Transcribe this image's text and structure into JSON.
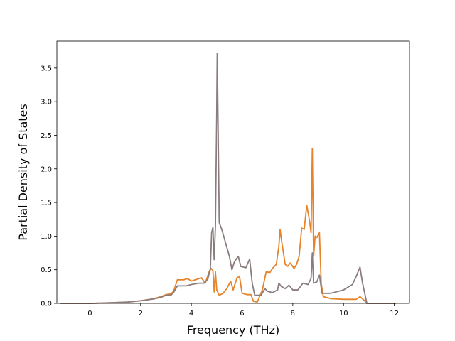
{
  "chart_data": {
    "type": "line",
    "title": "",
    "xlabel": "Frequency (THz)",
    "ylabel": "Partial Density of States",
    "xlim": [
      -1.3,
      12.6
    ],
    "ylim": [
      0.0,
      3.9
    ],
    "xticks": [
      0,
      2,
      4,
      6,
      8,
      10,
      12
    ],
    "xtick_labels": [
      "0",
      "2",
      "4",
      "6",
      "8",
      "10",
      "12"
    ],
    "yticks": [
      0.0,
      0.5,
      1.0,
      1.5,
      2.0,
      2.5,
      3.0,
      3.5
    ],
    "ytick_labels": [
      "0.0",
      "0.5",
      "1.0",
      "1.5",
      "2.0",
      "2.5",
      "3.0",
      "3.5"
    ],
    "grid": false,
    "series": [
      {
        "color": "#e6842b",
        "points": [
          [
            -1.15,
            0.0
          ],
          [
            0.0,
            0.0
          ],
          [
            0.5,
            0.005
          ],
          [
            1.0,
            0.012
          ],
          [
            1.5,
            0.02
          ],
          [
            2.0,
            0.038
          ],
          [
            2.5,
            0.068
          ],
          [
            2.8,
            0.1
          ],
          [
            3.0,
            0.13
          ],
          [
            3.2,
            0.14
          ],
          [
            3.3,
            0.18
          ],
          [
            3.45,
            0.35
          ],
          [
            3.7,
            0.35
          ],
          [
            3.85,
            0.37
          ],
          [
            4.0,
            0.33
          ],
          [
            4.15,
            0.35
          ],
          [
            4.4,
            0.38
          ],
          [
            4.55,
            0.3
          ],
          [
            4.7,
            0.47
          ],
          [
            4.78,
            0.52
          ],
          [
            4.85,
            0.49
          ],
          [
            4.9,
            0.17
          ],
          [
            4.95,
            0.47
          ],
          [
            5.0,
            0.2
          ],
          [
            5.1,
            0.12
          ],
          [
            5.25,
            0.15
          ],
          [
            5.4,
            0.22
          ],
          [
            5.55,
            0.33
          ],
          [
            5.65,
            0.2
          ],
          [
            5.8,
            0.38
          ],
          [
            5.9,
            0.4
          ],
          [
            6.0,
            0.15
          ],
          [
            6.2,
            0.13
          ],
          [
            6.35,
            0.13
          ],
          [
            6.45,
            0.03
          ],
          [
            6.6,
            0.02
          ],
          [
            6.8,
            0.2
          ],
          [
            6.95,
            0.47
          ],
          [
            7.1,
            0.46
          ],
          [
            7.2,
            0.52
          ],
          [
            7.35,
            0.58
          ],
          [
            7.45,
            0.85
          ],
          [
            7.5,
            1.1
          ],
          [
            7.55,
            0.95
          ],
          [
            7.62,
            0.78
          ],
          [
            7.7,
            0.58
          ],
          [
            7.8,
            0.55
          ],
          [
            7.9,
            0.6
          ],
          [
            8.05,
            0.52
          ],
          [
            8.15,
            0.58
          ],
          [
            8.25,
            0.7
          ],
          [
            8.35,
            1.12
          ],
          [
            8.45,
            1.1
          ],
          [
            8.55,
            1.46
          ],
          [
            8.65,
            1.25
          ],
          [
            8.72,
            1.05
          ],
          [
            8.77,
            2.3
          ],
          [
            8.82,
            0.7
          ],
          [
            8.88,
            1.0
          ],
          [
            8.95,
            0.98
          ],
          [
            9.05,
            1.05
          ],
          [
            9.12,
            0.3
          ],
          [
            9.2,
            0.1
          ],
          [
            9.5,
            0.07
          ],
          [
            10.0,
            0.06
          ],
          [
            10.5,
            0.06
          ],
          [
            10.65,
            0.1
          ],
          [
            10.8,
            0.05
          ],
          [
            10.92,
            0.0
          ],
          [
            12.05,
            0.0
          ]
        ]
      },
      {
        "color": "#8a7d7d",
        "points": [
          [
            -1.15,
            0.0
          ],
          [
            0.0,
            0.0
          ],
          [
            0.5,
            0.005
          ],
          [
            1.0,
            0.012
          ],
          [
            1.5,
            0.02
          ],
          [
            2.0,
            0.038
          ],
          [
            2.5,
            0.065
          ],
          [
            2.8,
            0.09
          ],
          [
            3.0,
            0.12
          ],
          [
            3.2,
            0.125
          ],
          [
            3.3,
            0.16
          ],
          [
            3.45,
            0.26
          ],
          [
            3.8,
            0.26
          ],
          [
            4.0,
            0.28
          ],
          [
            4.3,
            0.3
          ],
          [
            4.5,
            0.3
          ],
          [
            4.65,
            0.36
          ],
          [
            4.75,
            0.52
          ],
          [
            4.8,
            1.05
          ],
          [
            4.85,
            1.13
          ],
          [
            4.9,
            0.65
          ],
          [
            4.95,
            1.15
          ],
          [
            5.0,
            2.8
          ],
          [
            5.02,
            3.72
          ],
          [
            5.06,
            2.5
          ],
          [
            5.1,
            1.2
          ],
          [
            5.2,
            1.1
          ],
          [
            5.35,
            0.9
          ],
          [
            5.5,
            0.7
          ],
          [
            5.6,
            0.5
          ],
          [
            5.7,
            0.62
          ],
          [
            5.85,
            0.7
          ],
          [
            5.95,
            0.55
          ],
          [
            6.15,
            0.53
          ],
          [
            6.3,
            0.66
          ],
          [
            6.4,
            0.3
          ],
          [
            6.5,
            0.12
          ],
          [
            6.6,
            0.12
          ],
          [
            6.75,
            0.12
          ],
          [
            6.9,
            0.22
          ],
          [
            7.0,
            0.18
          ],
          [
            7.2,
            0.16
          ],
          [
            7.4,
            0.2
          ],
          [
            7.45,
            0.3
          ],
          [
            7.55,
            0.25
          ],
          [
            7.7,
            0.22
          ],
          [
            7.85,
            0.27
          ],
          [
            8.0,
            0.2
          ],
          [
            8.2,
            0.2
          ],
          [
            8.4,
            0.3
          ],
          [
            8.6,
            0.28
          ],
          [
            8.72,
            0.37
          ],
          [
            8.77,
            0.75
          ],
          [
            8.82,
            0.3
          ],
          [
            8.95,
            0.32
          ],
          [
            9.05,
            0.42
          ],
          [
            9.15,
            0.15
          ],
          [
            9.5,
            0.15
          ],
          [
            10.0,
            0.2
          ],
          [
            10.35,
            0.28
          ],
          [
            10.5,
            0.4
          ],
          [
            10.65,
            0.54
          ],
          [
            10.75,
            0.3
          ],
          [
            10.92,
            0.0
          ],
          [
            12.05,
            0.0
          ]
        ]
      }
    ]
  }
}
